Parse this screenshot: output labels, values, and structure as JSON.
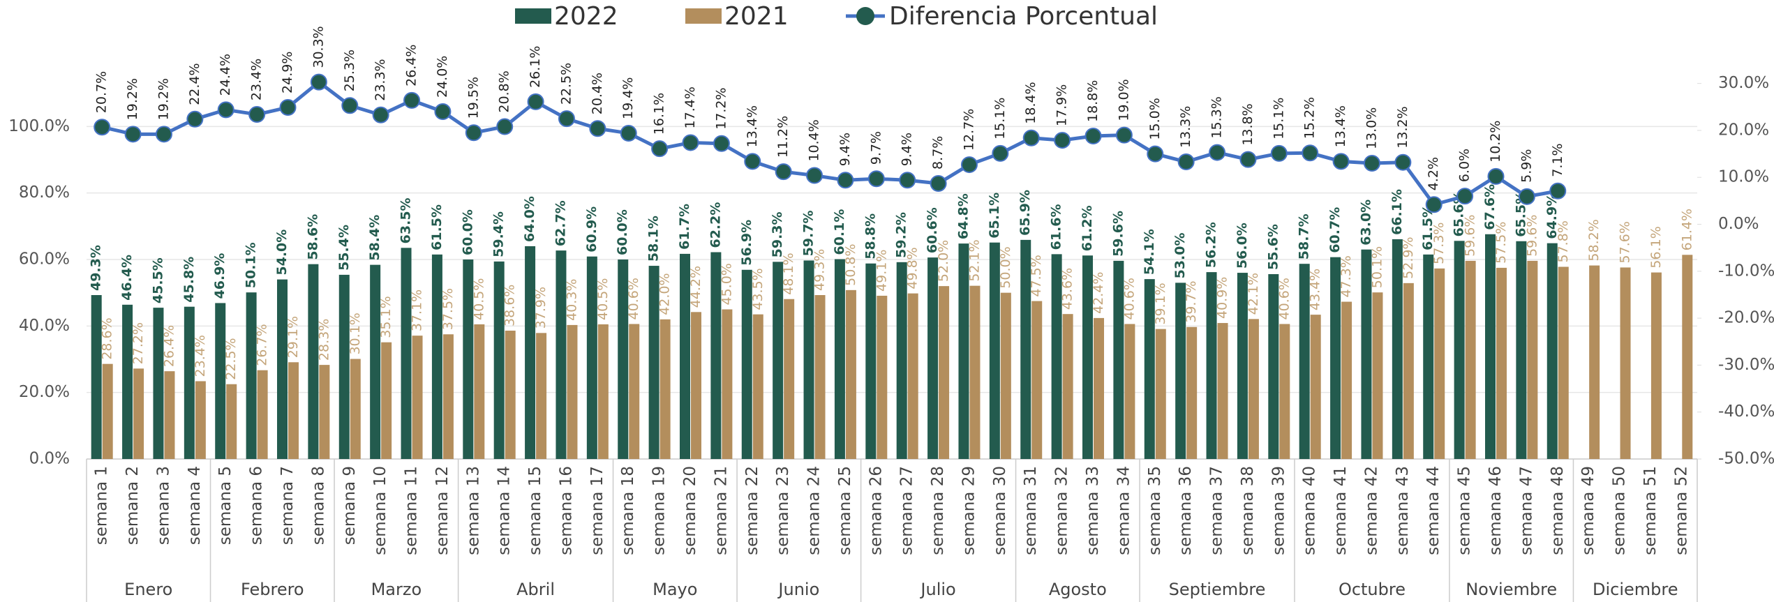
{
  "chart_data": {
    "type": "bar",
    "categories": [
      "semana 1",
      "semana 2",
      "semana 3",
      "semana 4",
      "semana 5",
      "semana 6",
      "semana 7",
      "semana 8",
      "semana 9",
      "semana 10",
      "semana 11",
      "semana 12",
      "semana 13",
      "semana 14",
      "semana 15",
      "semana 16",
      "semana 17",
      "semana 18",
      "semana 19",
      "semana 20",
      "semana 21",
      "semana 22",
      "semana 23",
      "semana 24",
      "semana 25",
      "semana 26",
      "semana 27",
      "semana 28",
      "semana 29",
      "semana 30",
      "semana 31",
      "semana 32",
      "semana 33",
      "semana 34",
      "semana 35",
      "semana 36",
      "semana 37",
      "semana 38",
      "semana 39",
      "semana 40",
      "semana 41",
      "semana 42",
      "semana 43",
      "semana 44",
      "semana 45",
      "semana 46",
      "semana 47",
      "semana 48",
      "semana 49",
      "semana 50",
      "semana 51",
      "semana 52"
    ],
    "months": [
      "Enero",
      "Enero",
      "Enero",
      "Enero",
      "Febrero",
      "Febrero",
      "Febrero",
      "Febrero",
      "Marzo",
      "Marzo",
      "Marzo",
      "Marzo",
      "Abril",
      "Abril",
      "Abril",
      "Abril",
      "Abril",
      "Mayo",
      "Mayo",
      "Mayo",
      "Mayo",
      "Junio",
      "Junio",
      "Junio",
      "Junio",
      "Julio",
      "Julio",
      "Julio",
      "Julio",
      "Julio",
      "Agosto",
      "Agosto",
      "Agosto",
      "Agosto",
      "Septiembre",
      "Septiembre",
      "Septiembre",
      "Septiembre",
      "Septiembre",
      "Octubre",
      "Octubre",
      "Octubre",
      "Octubre",
      "Octubre",
      "Noviembre",
      "Noviembre",
      "Noviembre",
      "Noviembre",
      "Diciembre",
      "Diciembre",
      "Diciembre",
      "Diciembre"
    ],
    "series": [
      {
        "name": "2022",
        "type": "bar",
        "color": "#235b4e",
        "label_color": "#235b4e",
        "values": [
          49.3,
          46.4,
          45.5,
          45.8,
          46.9,
          50.1,
          54.0,
          58.6,
          55.4,
          58.4,
          63.5,
          61.5,
          60.0,
          59.4,
          64.0,
          62.7,
          60.9,
          60.0,
          58.1,
          61.7,
          62.2,
          56.9,
          59.3,
          59.7,
          60.1,
          58.8,
          59.2,
          60.6,
          64.8,
          65.1,
          65.9,
          61.6,
          61.2,
          59.6,
          54.1,
          53.0,
          56.2,
          56.0,
          55.6,
          58.7,
          60.7,
          63.0,
          66.1,
          61.5,
          65.6,
          67.6,
          65.5,
          64.9,
          null,
          null,
          null,
          null
        ],
        "value_labels": [
          "49.3%",
          "46.4%",
          "45.5%",
          "45.8%",
          "46.9%",
          "50.1%",
          "54.0%",
          "58.6%",
          "55.4%",
          "58.4%",
          "63.5%",
          "61.5%",
          "60.0%",
          "59.4%",
          "64.0%",
          "62.7%",
          "60.9%",
          "60.0%",
          "58.1%",
          "61.7%",
          "62.2%",
          "56.9%",
          "59.3%",
          "59.7%",
          "60.1%",
          "58.8%",
          "59.2%",
          "60.6%",
          "64.8%",
          "65.1%",
          "65.9%",
          "61.6%",
          "61.2%",
          "59.6%",
          "54.1%",
          "53.0%",
          "56.2%",
          "56.0%",
          "55.6%",
          "58.7%",
          "60.7%",
          "63.0%",
          "66.1%",
          "61.5%",
          "65.6%",
          "67.6%",
          "65.5%",
          "64.9%",
          null,
          null,
          null,
          null
        ]
      },
      {
        "name": "2021",
        "type": "bar",
        "color": "#b38e5d",
        "label_color": "#c4a57a",
        "values": [
          28.6,
          27.2,
          26.4,
          23.4,
          22.5,
          26.7,
          29.1,
          28.3,
          30.1,
          35.1,
          37.1,
          37.5,
          40.5,
          38.6,
          37.9,
          40.3,
          40.5,
          40.6,
          42.0,
          44.2,
          45.0,
          43.5,
          48.1,
          49.3,
          50.8,
          49.1,
          49.8,
          52.0,
          52.1,
          50.0,
          47.5,
          43.6,
          42.4,
          40.6,
          39.1,
          39.7,
          40.9,
          42.1,
          40.6,
          43.4,
          47.3,
          50.1,
          52.9,
          57.3,
          59.6,
          57.5,
          59.6,
          57.8,
          58.2,
          57.6,
          56.1,
          61.4
        ],
        "value_labels": [
          "28.6%",
          "27.2%",
          "26.4%",
          "23.4%",
          "22.5%",
          "26.7%",
          "29.1%",
          "28.3%",
          "30.1%",
          "35.1%",
          "37.1%",
          "37.5%",
          "40.5%",
          "38.6%",
          "37.9%",
          "40.3%",
          "40.5%",
          "40.6%",
          "42.0%",
          "44.2%",
          "45.0%",
          "43.5%",
          "48.1%",
          "49.3%",
          "50.8%",
          "49.1%",
          "49.8%",
          "52.0%",
          "52.1%",
          "50.0%",
          "47.5%",
          "43.6%",
          "42.4%",
          "40.6%",
          "39.1%",
          "39.7%",
          "40.9%",
          "42.1%",
          "40.6%",
          "43.4%",
          "47.3%",
          "50.1%",
          "52.9%",
          "57.3%",
          "59.6%",
          "57.5%",
          "59.6%",
          "57.8%",
          "58.2%",
          "57.6%",
          "56.1%",
          "61.4%"
        ]
      },
      {
        "name": "Diferencia Porcentual",
        "type": "line",
        "axis": "y2",
        "color": "#4472c4",
        "marker_color": "#235b4e",
        "label_color": "#222222",
        "values": [
          20.7,
          19.2,
          19.2,
          22.4,
          24.4,
          23.4,
          24.9,
          30.3,
          25.3,
          23.3,
          26.4,
          24.0,
          19.5,
          20.8,
          26.1,
          22.5,
          20.4,
          19.4,
          16.1,
          17.4,
          17.2,
          13.4,
          11.2,
          10.4,
          9.4,
          9.7,
          9.4,
          8.7,
          12.7,
          15.1,
          18.4,
          17.9,
          18.8,
          19.0,
          15.0,
          13.3,
          15.3,
          13.8,
          15.1,
          15.2,
          13.4,
          13.0,
          13.2,
          4.2,
          6.0,
          10.2,
          5.9,
          7.1,
          null,
          null,
          null,
          null
        ],
        "value_labels": [
          "20.7%",
          "19.2%",
          "19.2%",
          "22.4%",
          "24.4%",
          "23.4%",
          "24.9%",
          "30.3%",
          "25.3%",
          "23.3%",
          "26.4%",
          "24.0%",
          "19.5%",
          "20.8%",
          "26.1%",
          "22.5%",
          "20.4%",
          "19.4%",
          "16.1%",
          "17.4%",
          "17.2%",
          "13.4%",
          "11.2%",
          "10.4%",
          "9.4%",
          "9.7%",
          "9.4%",
          "8.7%",
          "12.7%",
          "15.1%",
          "18.4%",
          "17.9%",
          "18.8%",
          "19.0%",
          "15.0%",
          "13.3%",
          "15.3%",
          "13.8%",
          "15.1%",
          "15.2%",
          "13.4%",
          "13.0%",
          "13.2%",
          "4.2%",
          "6.0%",
          "10.2%",
          "5.9%",
          "7.1%",
          null,
          null,
          null,
          null
        ]
      }
    ],
    "ylim": [
      0,
      120
    ],
    "yticks": [
      {
        "value": 0,
        "label": "0.0%"
      },
      {
        "value": 20,
        "label": "20.0%"
      },
      {
        "value": 40,
        "label": "40.0%"
      },
      {
        "value": 60,
        "label": "60.0%"
      },
      {
        "value": 80,
        "label": "80.0%"
      },
      {
        "value": 100,
        "label": "100.0%"
      }
    ],
    "y2lim": [
      -50,
      35
    ],
    "y2ticks": [
      {
        "value": -50,
        "label": "-50.0%"
      },
      {
        "value": -40,
        "label": "-40.0%"
      },
      {
        "value": -30,
        "label": "-30.0%"
      },
      {
        "value": -20,
        "label": "-20.0%"
      },
      {
        "value": -10,
        "label": "-10.0%"
      },
      {
        "value": 0,
        "label": "0.0%"
      },
      {
        "value": 10,
        "label": "10.0%"
      },
      {
        "value": 20,
        "label": "20.0%"
      },
      {
        "value": 30,
        "label": "30.0%"
      }
    ],
    "grid": true,
    "legend": "top"
  }
}
